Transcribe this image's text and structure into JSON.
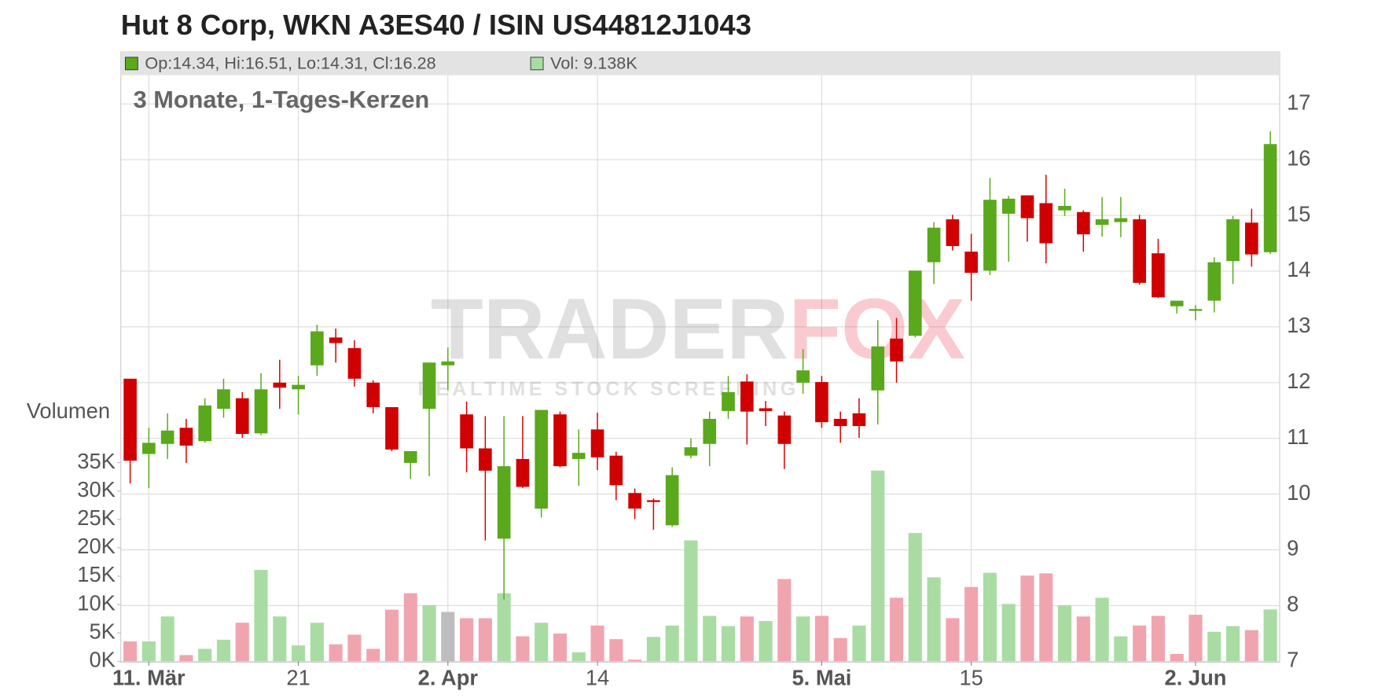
{
  "chart_data": {
    "type": "candlestick",
    "title": "Hut 8 Corp, WKN A3ES40 / ISIN US44812J1043",
    "subtitle": "3 Monate, 1-Tages-Kerzen",
    "legend_text": "Op:14.34, Hi:16.51, Lo:14.31, Cl:16.28",
    "volume_text": "Vol: 9.138K",
    "watermark": [
      "TRADER",
      "FOX"
    ],
    "watermark_tagline": "REALTIME STOCK SCREENING",
    "categories": [
      null,
      "11. Mär",
      null,
      null,
      null,
      null,
      null,
      null,
      null,
      "21",
      null,
      null,
      null,
      null,
      null,
      null,
      null,
      "2. Apr",
      null,
      null,
      null,
      null,
      null,
      null,
      null,
      "14",
      null,
      null,
      null,
      null,
      null,
      null,
      null,
      null,
      null,
      null,
      null,
      "5. Mai",
      null,
      null,
      null,
      null,
      null,
      null,
      null,
      "15",
      null,
      null,
      null,
      null,
      null,
      null,
      null,
      null,
      null,
      null,
      null,
      "2. Jun",
      null,
      null,
      null,
      null
    ],
    "open": [
      12.07,
      10.72,
      10.9,
      11.19,
      10.95,
      11.53,
      11.72,
      11.09,
      12.0,
      11.88,
      12.31,
      12.81,
      12.62,
      12.0,
      11.56,
      10.56,
      11.53,
      12.31,
      11.43,
      10.82,
      9.2,
      10.63,
      9.74,
      11.43,
      10.63,
      11.16,
      10.69,
      10.02,
      9.89,
      9.44,
      10.69,
      10.9,
      11.49,
      12.02,
      11.54,
      11.41,
      12.0,
      12.01,
      11.35,
      11.45,
      11.86,
      12.79,
      12.84,
      14.16,
      14.93,
      14.35,
      14.01,
      15.03,
      15.36,
      15.22,
      15.09,
      15.06,
      14.83,
      14.88,
      14.93,
      14.32,
      13.37,
      13.29,
      13.47,
      14.18,
      14.87,
      14.34
    ],
    "high": [
      12.07,
      11.19,
      11.45,
      11.35,
      11.72,
      12.07,
      11.83,
      12.17,
      12.41,
      12.12,
      13.04,
      12.97,
      12.76,
      12.04,
      11.56,
      10.77,
      12.36,
      12.63,
      11.66,
      11.4,
      11.4,
      11.4,
      11.51,
      11.48,
      11.16,
      11.46,
      10.76,
      10.1,
      9.92,
      10.48,
      11.0,
      11.48,
      12.12,
      12.15,
      11.67,
      11.48,
      12.6,
      12.12,
      11.48,
      11.72,
      13.12,
      13.16,
      14.01,
      14.88,
      15.01,
      14.67,
      15.67,
      15.35,
      15.36,
      15.73,
      15.48,
      15.09,
      15.33,
      15.33,
      15.01,
      14.58,
      13.47,
      13.39,
      14.25,
      14.99,
      15.12,
      16.51
    ],
    "low": [
      10.19,
      10.11,
      10.63,
      10.56,
      10.92,
      11.37,
      11.01,
      11.06,
      11.53,
      11.43,
      12.12,
      12.36,
      11.93,
      11.45,
      10.77,
      10.27,
      10.32,
      11.86,
      10.39,
      9.17,
      8.11,
      10.11,
      9.58,
      10.48,
      10.15,
      10.43,
      9.89,
      9.55,
      9.36,
      9.41,
      10.64,
      10.5,
      11.35,
      10.89,
      11.22,
      10.45,
      11.8,
      11.19,
      10.92,
      11.01,
      11.25,
      12.0,
      12.81,
      13.77,
      14.37,
      13.47,
      13.93,
      14.17,
      14.53,
      14.14,
      14.99,
      14.35,
      14.62,
      14.61,
      13.76,
      13.52,
      13.24,
      13.12,
      13.26,
      13.77,
      14.08,
      14.31
    ],
    "close": [
      10.6,
      10.92,
      11.14,
      10.87,
      11.59,
      11.88,
      11.08,
      11.88,
      11.91,
      11.96,
      12.92,
      12.71,
      12.07,
      11.56,
      10.8,
      10.77,
      12.36,
      12.38,
      10.82,
      10.42,
      10.5,
      10.13,
      11.51,
      10.5,
      10.74,
      10.66,
      10.16,
      9.74,
      9.86,
      10.34,
      10.84,
      11.35,
      11.83,
      11.48,
      11.49,
      10.9,
      12.22,
      11.29,
      11.22,
      11.22,
      12.65,
      12.38,
      14.01,
      14.78,
      14.45,
      13.97,
      15.28,
      15.3,
      14.95,
      14.5,
      15.17,
      14.66,
      14.93,
      14.95,
      13.79,
      13.53,
      13.47,
      13.32,
      14.16,
      14.93,
      14.3,
      16.28
    ],
    "up_color": "#5aa81c",
    "down_color": "#d10000",
    "ylim": [
      7,
      17.5
    ],
    "yticks": [
      7,
      8,
      9,
      10,
      11,
      12,
      13,
      14,
      15,
      16,
      17
    ],
    "grid": true,
    "volume": {
      "label": "Volumen",
      "values": [
        3.5,
        3.5,
        7.9,
        1.1,
        2.2,
        3.8,
        6.8,
        16.1,
        7.9,
        2.8,
        6.8,
        3.0,
        4.7,
        2.2,
        9.1,
        12.0,
        9.9,
        8.7,
        7.6,
        7.6,
        12.0,
        4.4,
        6.8,
        4.9,
        1.6,
        6.3,
        3.9,
        0.3,
        4.3,
        6.3,
        21.3,
        8.0,
        6.2,
        7.9,
        7.1,
        14.5,
        7.9,
        8.0,
        4.1,
        6.3,
        33.6,
        11.2,
        22.6,
        14.8,
        7.6,
        13.1,
        15.6,
        10.1,
        15.1,
        15.5,
        9.9,
        7.9,
        11.2,
        4.4,
        6.3,
        8.0,
        1.3,
        8.2,
        5.2,
        6.2,
        5.5,
        9.138
      ],
      "colors": [
        "#f0a5ae",
        "#a9dca2",
        "#a9dca2",
        "#f0a5ae",
        "#a9dca2",
        "#a9dca2",
        "#f0a5ae",
        "#a9dca2",
        "#a9dca2",
        "#a9dca2",
        "#a9dca2",
        "#f0a5ae",
        "#f0a5ae",
        "#f0a5ae",
        "#f0a5ae",
        "#f0a5ae",
        "#a9dca2",
        "#bdbdbd",
        "#f0a5ae",
        "#f0a5ae",
        "#a9dca2",
        "#f0a5ae",
        "#a9dca2",
        "#f0a5ae",
        "#a9dca2",
        "#f0a5ae",
        "#f0a5ae",
        "#f0a5ae",
        "#a9dca2",
        "#a9dca2",
        "#a9dca2",
        "#a9dca2",
        "#a9dca2",
        "#f0a5ae",
        "#a9dca2",
        "#f0a5ae",
        "#a9dca2",
        "#f0a5ae",
        "#f0a5ae",
        "#a9dca2",
        "#a9dca2",
        "#f0a5ae",
        "#a9dca2",
        "#a9dca2",
        "#f0a5ae",
        "#f0a5ae",
        "#a9dca2",
        "#a9dca2",
        "#f0a5ae",
        "#f0a5ae",
        "#a9dca2",
        "#f0a5ae",
        "#a9dca2",
        "#a9dca2",
        "#f0a5ae",
        "#f0a5ae",
        "#f0a5ae",
        "#f0a5ae",
        "#a9dca2",
        "#a9dca2",
        "#f0a5ae",
        "#a9dca2"
      ],
      "ylim": [
        0,
        35
      ],
      "yticks": [
        {
          "value": 0,
          "label": "0K"
        },
        {
          "value": 5,
          "label": "5K"
        },
        {
          "value": 10,
          "label": "10K"
        },
        {
          "value": 15,
          "label": "15K"
        },
        {
          "value": 20,
          "label": "20K"
        },
        {
          "value": 25,
          "label": "25K"
        },
        {
          "value": 30,
          "label": "30K"
        },
        {
          "value": 35,
          "label": "35K"
        }
      ]
    }
  }
}
